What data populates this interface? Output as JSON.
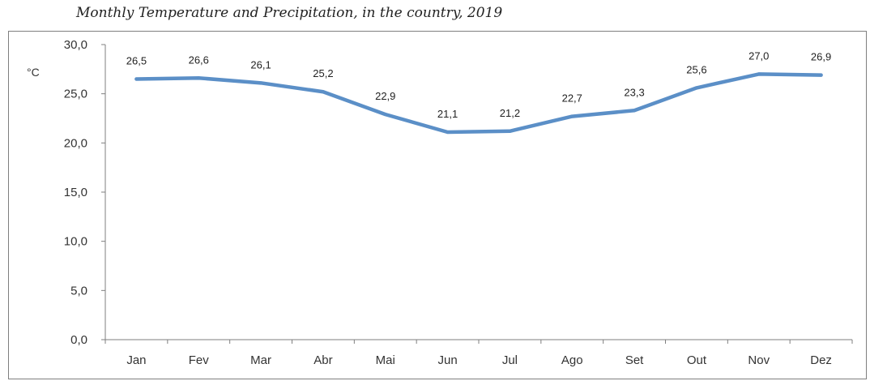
{
  "chart_data": {
    "type": "line",
    "title": "Monthly Temperature and Precipitation, in the country, 2019",
    "ylabel": "°C",
    "xlabel": "",
    "categories": [
      "Jan",
      "Fev",
      "Mar",
      "Abr",
      "Mai",
      "Jun",
      "Jul",
      "Ago",
      "Set",
      "Out",
      "Nov",
      "Dez"
    ],
    "series": [
      {
        "values": [
          26.5,
          26.6,
          26.1,
          25.2,
          22.9,
          21.1,
          21.2,
          22.7,
          23.3,
          25.6,
          27.0,
          26.9
        ],
        "labels": [
          "26,5",
          "26,6",
          "26,1",
          "25,2",
          "22,9",
          "21,1",
          "21,2",
          "22,7",
          "23,3",
          "25,6",
          "27,0",
          "26,9"
        ],
        "color": "#5b8fc7"
      }
    ],
    "ylim": [
      0,
      30
    ],
    "yticks": [
      0,
      5,
      10,
      15,
      20,
      25,
      30
    ],
    "ytick_labels": [
      "0,0",
      "5,0",
      "10,0",
      "15,0",
      "20,0",
      "25,0",
      "30,0"
    ],
    "grid": false,
    "axis_color": "#7f7f7f"
  }
}
